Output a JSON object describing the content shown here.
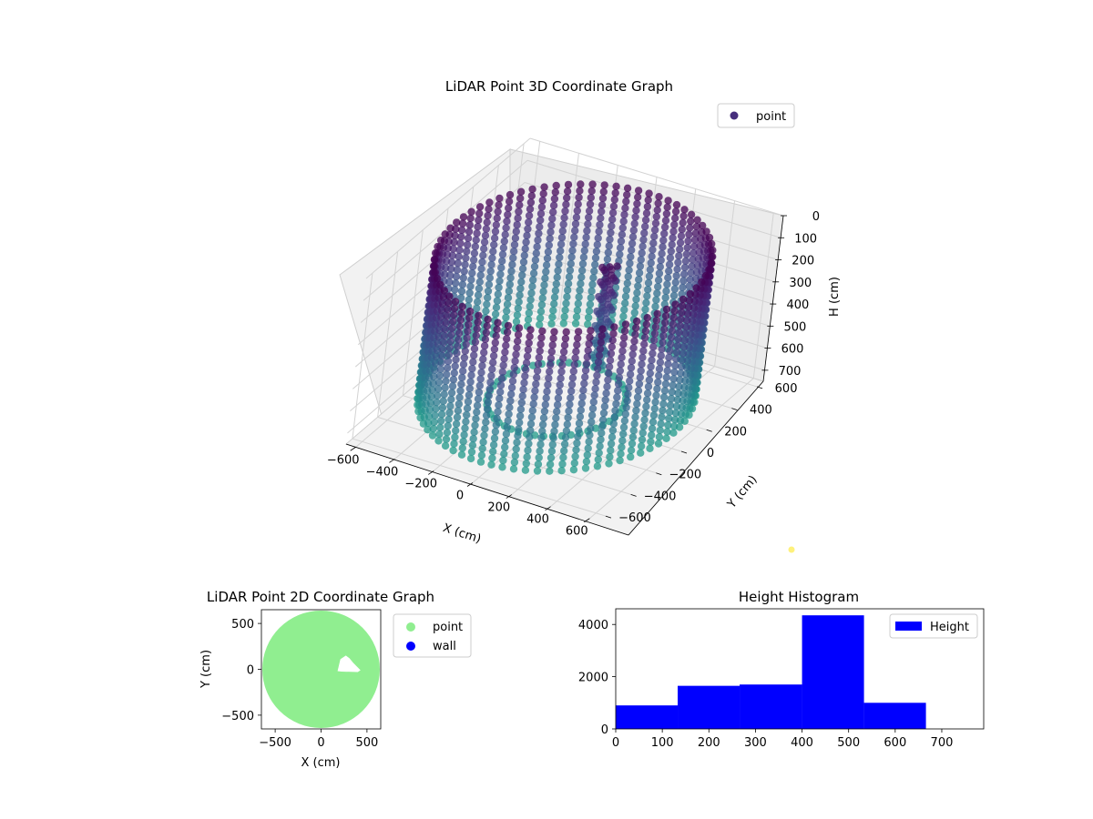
{
  "figure": {
    "colors": {
      "point_3d": "#472f7d",
      "point_2d": "#90ee90",
      "wall": "#0000ff",
      "hist": "#0000ff",
      "colormap": "viridis"
    }
  },
  "chart_data": [
    {
      "type": "scatter",
      "projection": "3d",
      "title": "LiDAR Point 3D Coordinate Graph",
      "xlabel": "X (cm)",
      "ylabel": "Y (cm)",
      "zlabel": "H (cm)",
      "xlim": [
        -650,
        650
      ],
      "ylim": [
        -650,
        650
      ],
      "zlim": [
        0,
        750
      ],
      "z_inverted": true,
      "xticks": [
        "−600",
        "−400",
        "−200",
        "0",
        "200",
        "400",
        "600"
      ],
      "yticks": [
        "−600",
        "−400",
        "−200",
        "0",
        "200",
        "400",
        "600"
      ],
      "zticks": [
        "0",
        "100",
        "200",
        "300",
        "400",
        "500",
        "600",
        "700"
      ],
      "legend": [
        "point"
      ],
      "legend_position": "top-right",
      "grid": true,
      "shape": {
        "description_kind": "cylindrical wall of points",
        "radius": 600,
        "h_range": [
          50,
          700
        ],
        "inner_object": {
          "x": 150,
          "y": 50,
          "h_range": [
            80,
            520
          ]
        }
      }
    },
    {
      "type": "scatter",
      "title": "LiDAR Point 2D Coordinate Graph",
      "xlabel": "X (cm)",
      "ylabel": "Y (cm)",
      "xlim": [
        -650,
        650
      ],
      "ylim": [
        -650,
        650
      ],
      "xticks": [
        "−500",
        "0",
        "500"
      ],
      "yticks": [
        "−500",
        "0",
        "500"
      ],
      "legend": [
        "point",
        "wall"
      ],
      "legend_position": "outside-right",
      "filled_region": {
        "center": [
          0,
          0
        ],
        "radius": 640
      },
      "hole": {
        "x_range": [
          180,
          430
        ],
        "y_range": [
          -30,
          150
        ]
      }
    },
    {
      "type": "bar",
      "subtype": "histogram",
      "title": "Height Histogram",
      "xlim": [
        0,
        790
      ],
      "ylim": [
        0,
        4600
      ],
      "xticks": [
        "0",
        "100",
        "200",
        "300",
        "400",
        "500",
        "600",
        "700"
      ],
      "yticks": [
        "0",
        "2000",
        "4000"
      ],
      "bin_edges": [
        0,
        133,
        266,
        400,
        533,
        666
      ],
      "counts": [
        900,
        1650,
        1700,
        4350,
        1000
      ],
      "series": [
        {
          "name": "Height"
        }
      ],
      "legend_position": "top-right"
    }
  ]
}
